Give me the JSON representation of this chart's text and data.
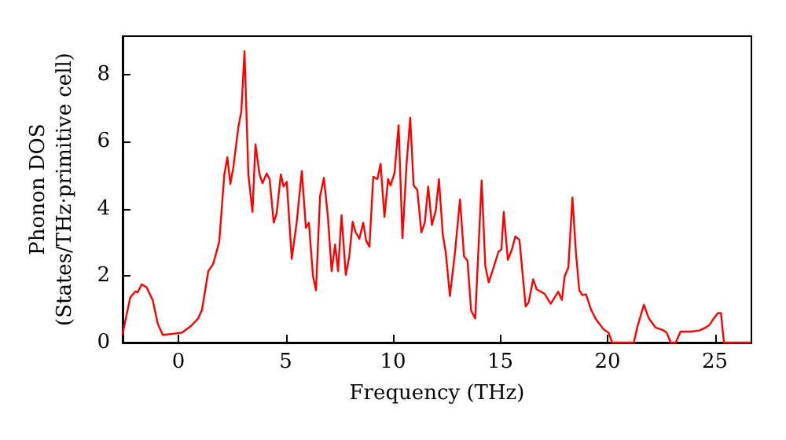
{
  "chart_data": {
    "type": "line",
    "xlabel": "Frequency (THz)",
    "ylabel": "Phonon DOS\n(States/THz·primitive cell)",
    "xlim": [
      -2.6,
      26.7
    ],
    "ylim": [
      0,
      9.15
    ],
    "xticks": [
      0,
      5,
      10,
      15,
      20,
      25
    ],
    "yticks": [
      0,
      2,
      4,
      6,
      8
    ],
    "grid": false,
    "marker": "none",
    "line_style": "solid",
    "series": [
      {
        "color": "#ff0000",
        "x": [
          -2.6,
          -2.25,
          -2.0,
          -1.9,
          -1.71,
          -1.48,
          -1.2,
          -0.96,
          -0.73,
          -0.27,
          0.17,
          0.56,
          0.92,
          1.1,
          1.39,
          1.62,
          1.9,
          2.14,
          2.28,
          2.42,
          2.56,
          2.8,
          2.93,
          3.08,
          3.26,
          3.45,
          3.59,
          3.78,
          3.92,
          4.11,
          4.25,
          4.44,
          4.58,
          4.77,
          4.9,
          5.05,
          5.28,
          5.51,
          5.75,
          5.94,
          6.08,
          6.27,
          6.41,
          6.6,
          6.78,
          6.97,
          7.14,
          7.3,
          7.44,
          7.6,
          7.8,
          7.96,
          8.12,
          8.26,
          8.43,
          8.61,
          8.75,
          8.9,
          9.08,
          9.27,
          9.42,
          9.6,
          9.77,
          9.88,
          10.07,
          10.26,
          10.44,
          10.63,
          10.8,
          10.96,
          11.13,
          11.32,
          11.48,
          11.64,
          11.81,
          11.99,
          12.14,
          12.32,
          12.46,
          12.65,
          12.89,
          13.12,
          13.31,
          13.47,
          13.64,
          13.83,
          14.13,
          14.3,
          14.46,
          14.67,
          14.91,
          15.05,
          15.16,
          15.35,
          15.54,
          15.7,
          15.89,
          16.18,
          16.32,
          16.53,
          16.69,
          17.06,
          17.35,
          17.7,
          17.87,
          18.0,
          18.17,
          18.36,
          18.52,
          18.68,
          18.82,
          18.99,
          19.23,
          19.46,
          19.81,
          20.05,
          20.21,
          21.22,
          21.39,
          21.69,
          21.92,
          22.23,
          22.56,
          22.75,
          22.94,
          23.17,
          23.4,
          23.87,
          24.27,
          24.51,
          24.74,
          24.91,
          25.14,
          25.28,
          25.42,
          26.64
        ],
        "values": [
          0.26,
          1.34,
          1.53,
          1.5,
          1.74,
          1.65,
          1.27,
          0.56,
          0.23,
          0.26,
          0.3,
          0.48,
          0.72,
          0.98,
          2.13,
          2.35,
          3.0,
          5.02,
          5.53,
          4.73,
          5.24,
          6.46,
          6.9,
          8.7,
          5.02,
          3.9,
          5.92,
          5.02,
          4.76,
          5.05,
          4.88,
          3.58,
          3.87,
          5.02,
          4.66,
          4.8,
          2.5,
          3.58,
          5.12,
          3.43,
          3.58,
          1.99,
          1.56,
          4.37,
          4.92,
          3.72,
          2.13,
          2.93,
          2.13,
          3.8,
          2.02,
          2.57,
          3.61,
          3.29,
          3.1,
          3.58,
          3.04,
          2.86,
          4.95,
          4.88,
          5.34,
          3.75,
          4.88,
          4.69,
          5.06,
          6.49,
          3.12,
          5.31,
          6.71,
          4.7,
          4.56,
          3.29,
          3.58,
          4.66,
          3.51,
          3.94,
          4.88,
          3.22,
          2.68,
          1.39,
          2.71,
          4.27,
          2.57,
          2.45,
          0.95,
          0.72,
          4.84,
          2.28,
          1.8,
          2.21,
          2.71,
          2.78,
          3.9,
          2.47,
          2.78,
          3.17,
          3.07,
          1.08,
          1.2,
          1.89,
          1.59,
          1.46,
          1.16,
          1.52,
          1.27,
          1.99,
          2.24,
          4.33,
          2.71,
          1.56,
          1.42,
          1.44,
          0.98,
          0.69,
          0.4,
          0.29,
          0,
          0,
          0.48,
          1.13,
          0.72,
          0.45,
          0.38,
          0.3,
          0,
          0,
          0.33,
          0.33,
          0.36,
          0.43,
          0.52,
          0.69,
          0.88,
          0.88,
          0,
          0
        ]
      }
    ]
  }
}
